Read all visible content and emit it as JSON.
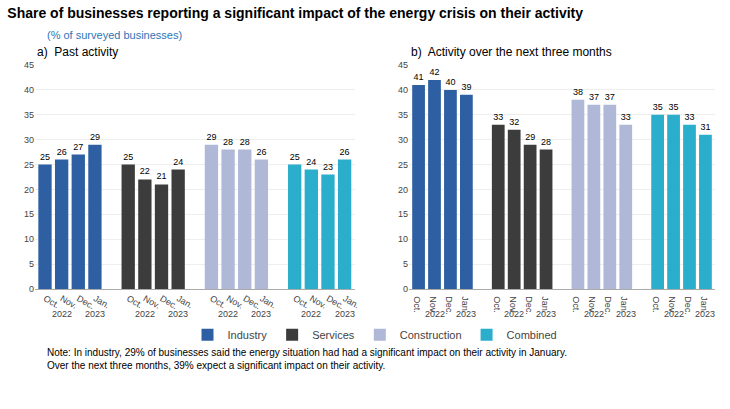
{
  "title": "Share of businesses reporting a significant impact of the energy crisis on their activity",
  "subtitle": "(% of surveyed businesses)",
  "annotations": [
    "Note: In industry, 29% of businesses said the energy situation had had a significant impact on their activity in January.\nOver the next three months, 39% expect a significant impact on their activity."
  ],
  "chart_data": [
    {
      "type": "bar",
      "title": "a)  Past activity",
      "categories": [
        [
          "2022",
          "Oct."
        ],
        [
          "2022",
          "Nov."
        ],
        [
          "2022",
          "Dec."
        ],
        [
          "2023",
          "Jan."
        ]
      ],
      "series": [
        {
          "name": "Industry",
          "color": "#2E5FA3",
          "values": [
            25,
            26,
            27,
            29
          ]
        },
        {
          "name": "Services",
          "color": "#3C3C3C",
          "values": [
            25,
            22,
            21,
            24
          ]
        },
        {
          "name": "Construction",
          "color": "#B0B8D8",
          "values": [
            29,
            28,
            28,
            26
          ]
        },
        {
          "name": "Combined",
          "color": "#2AAECB",
          "values": [
            25,
            24,
            23,
            26
          ]
        }
      ],
      "ylim": [
        0,
        45
      ],
      "yticks": [
        0,
        5,
        10,
        15,
        20,
        25,
        30,
        35,
        40,
        45
      ],
      "grid": true,
      "data_labels": true,
      "legend": "bottom"
    },
    {
      "type": "bar",
      "title": "b)  Activity over the next three months",
      "categories": [
        [
          "2022",
          "Oct."
        ],
        [
          "2022",
          "Nov."
        ],
        [
          "2022",
          "Dec."
        ],
        [
          "2023",
          "Jan."
        ]
      ],
      "series": [
        {
          "name": "Industry",
          "color": "#2E5FA3",
          "values": [
            41,
            42,
            40,
            39
          ]
        },
        {
          "name": "Services",
          "color": "#3C3C3C",
          "values": [
            33,
            32,
            29,
            28
          ]
        },
        {
          "name": "Construction",
          "color": "#B0B8D8",
          "values": [
            38,
            37,
            37,
            33
          ]
        },
        {
          "name": "Combined",
          "color": "#2AAECB",
          "values": [
            35,
            35,
            33,
            31
          ]
        }
      ],
      "ylim": [
        0,
        45
      ],
      "yticks": [
        0,
        5,
        10,
        15,
        20,
        25,
        30,
        35,
        40,
        45
      ],
      "grid": true,
      "data_labels": true,
      "legend": "bottom"
    }
  ]
}
